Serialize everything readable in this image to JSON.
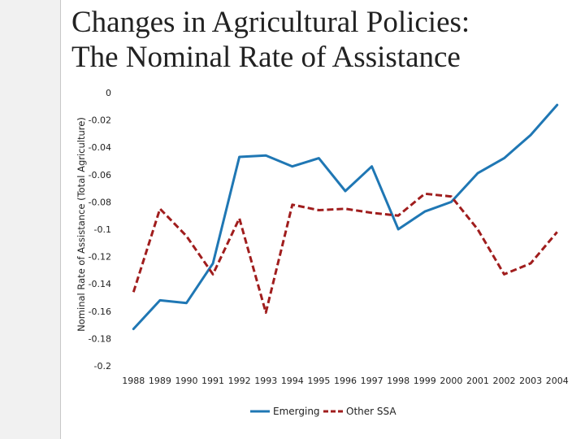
{
  "slide": {
    "title_line1": "Changes in Agricultural Policies:",
    "title_line2": "The Nominal Rate of Assistance"
  },
  "chart_data": {
    "type": "line",
    "title": "Changes in Agricultural Policies: The Nominal Rate of Assistance",
    "xlabel": "",
    "ylabel": "Nominal Rate of Assistance (Total Agriculture)",
    "categories": [
      "1988",
      "1989",
      "1990",
      "1991",
      "1992",
      "1993",
      "1994",
      "1995",
      "1996",
      "1997",
      "1998",
      "1999",
      "2000",
      "2001",
      "2002",
      "2003",
      "2004"
    ],
    "y_ticks": [
      "0",
      "-0.02",
      "-0.04",
      "-0.06",
      "-0.08",
      "-0.1",
      "-0.12",
      "-0.14",
      "-0.16",
      "-0.18",
      "-0.2"
    ],
    "ylim": [
      -0.2,
      0
    ],
    "grid": false,
    "legend_position": "bottom",
    "series": [
      {
        "name": "Emerging",
        "color": "#1f77b4",
        "style": "solid",
        "values": [
          -0.173,
          -0.152,
          -0.154,
          -0.125,
          -0.047,
          -0.046,
          -0.054,
          -0.048,
          -0.072,
          -0.054,
          -0.1,
          -0.087,
          -0.08,
          -0.059,
          -0.048,
          -0.031,
          -0.009
        ]
      },
      {
        "name": "Other SSA",
        "color": "#a01d1d",
        "style": "dashed",
        "values": [
          -0.146,
          -0.085,
          -0.105,
          -0.133,
          -0.092,
          -0.161,
          -0.082,
          -0.086,
          -0.085,
          -0.088,
          -0.09,
          -0.074,
          -0.076,
          -0.1,
          -0.133,
          -0.125,
          -0.102
        ]
      }
    ]
  }
}
